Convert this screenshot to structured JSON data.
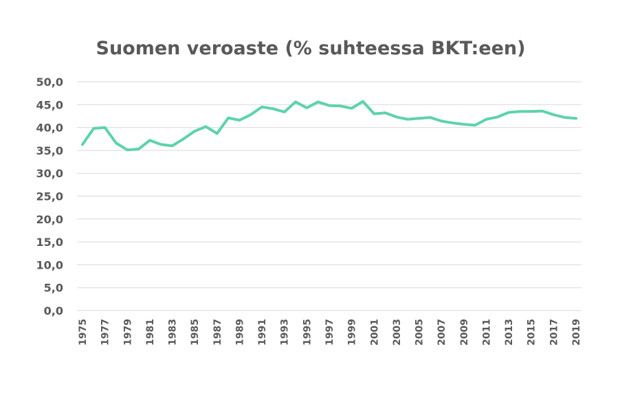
{
  "chart_data": {
    "type": "line",
    "title": "Suomen veroaste (% suhteessa BKT:een)",
    "xlabel": "",
    "ylabel": "",
    "ylim": [
      0,
      50
    ],
    "yticks": [
      "0,0",
      "5,0",
      "10,0",
      "15,0",
      "20,0",
      "25,0",
      "30,0",
      "35,0",
      "40,0",
      "45,0",
      "50,0"
    ],
    "xtick_labels": [
      "1975",
      "1977",
      "1979",
      "1981",
      "1983",
      "1985",
      "1987",
      "1989",
      "1991",
      "1993",
      "1995",
      "1997",
      "1999",
      "2001",
      "2003",
      "2005",
      "2007",
      "2009",
      "2011",
      "2013",
      "2015",
      "2017",
      "2019"
    ],
    "grid": true,
    "line_color": "#5dd3aa",
    "series": [
      {
        "x": [
          1975,
          1976,
          1977,
          1978,
          1979,
          1980,
          1981,
          1982,
          1983,
          1984,
          1985,
          1986,
          1987,
          1988,
          1989,
          1990,
          1991,
          1992,
          1993,
          1994,
          1995,
          1996,
          1997,
          1998,
          1999,
          2000,
          2001,
          2002,
          2003,
          2004,
          2005,
          2006,
          2007,
          2008,
          2009,
          2010,
          2011,
          2012,
          2013,
          2014,
          2015,
          2016,
          2017,
          2018,
          2019
        ],
        "values": [
          36.3,
          39.8,
          40.0,
          36.6,
          35.1,
          35.3,
          37.2,
          36.3,
          36.0,
          37.5,
          39.2,
          40.2,
          38.7,
          42.1,
          41.6,
          42.8,
          44.5,
          44.1,
          43.4,
          45.6,
          44.3,
          45.6,
          44.8,
          44.7,
          44.2,
          45.7,
          43.0,
          43.2,
          42.3,
          41.8,
          42.0,
          42.2,
          41.4,
          41.0,
          40.7,
          40.5,
          41.8,
          42.3,
          43.3,
          43.5,
          43.5,
          43.6,
          42.8,
          42.2,
          42.0
        ]
      }
    ]
  }
}
